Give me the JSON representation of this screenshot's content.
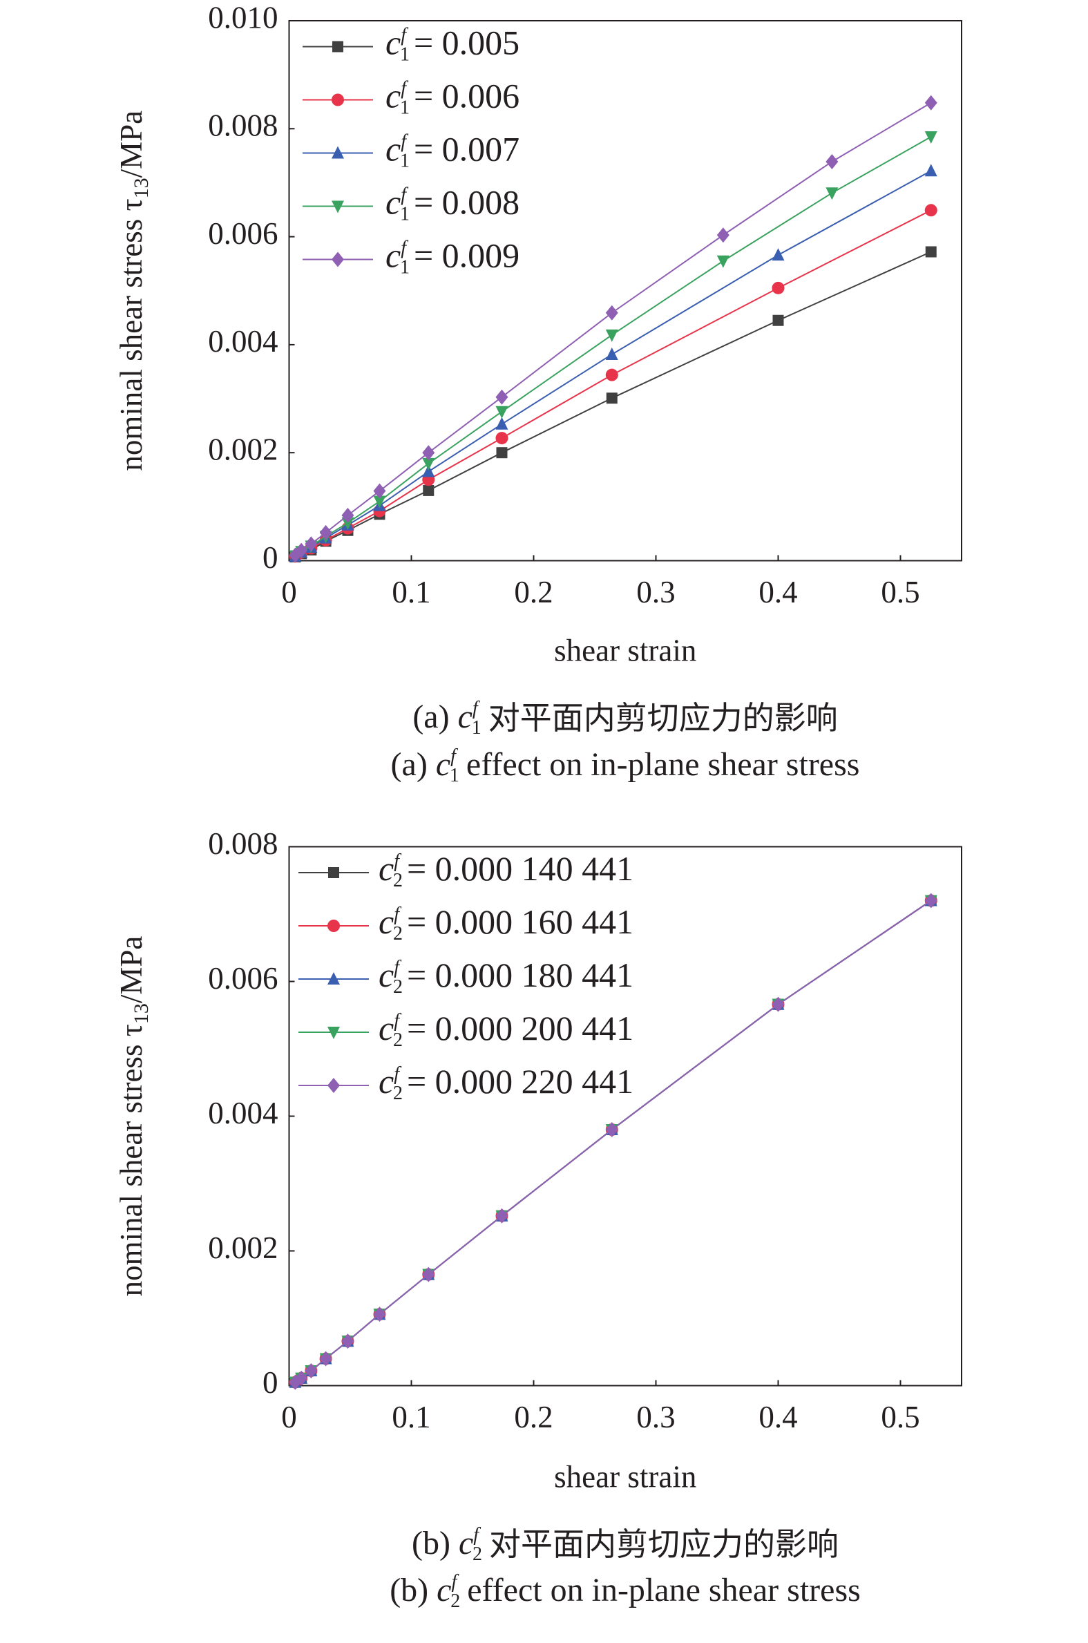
{
  "chart_data": [
    {
      "type": "line",
      "ylabel": [
        "nominal shear stress τ",
        "13",
        "/MPa"
      ],
      "xlabel": "shear strain",
      "legend_symbol": {
        "base": "c",
        "sup": "f",
        "sub": "1"
      },
      "caption_cn": [
        "(a) ",
        "对平面内剪切应力的影响"
      ],
      "caption_en": [
        "(a) ",
        "effect on in-plane shear stress"
      ],
      "xlim": [
        0,
        0.55
      ],
      "xticks": [
        0,
        0.1,
        0.2,
        0.3,
        0.4,
        0.5
      ],
      "ylim": [
        0,
        0.01
      ],
      "yticks": [
        0,
        0.002,
        0.004,
        0.006,
        0.008,
        {
          "value": 0.01,
          "label": "0.010"
        }
      ],
      "legend": "upper-left",
      "series": [
        {
          "name": "= 0.005",
          "color": "#404040",
          "marker": "square",
          "x": [
            0.005,
            0.01,
            0.018,
            0.03,
            0.048,
            0.074,
            0.114,
            0.174,
            0.264,
            0.4,
            0.525
          ],
          "values": [
            7e-05,
            0.00013,
            0.0002,
            0.00036,
            0.00056,
            0.00086,
            0.0013,
            0.002,
            0.00301,
            0.00445,
            0.00572
          ]
        },
        {
          "name": "= 0.006",
          "color": "#e8344a",
          "marker": "circle",
          "x": [
            0.005,
            0.01,
            0.018,
            0.03,
            0.048,
            0.074,
            0.114,
            0.174,
            0.264,
            0.4,
            0.525
          ],
          "values": [
            8e-05,
            0.00015,
            0.00023,
            0.00038,
            0.0006,
            0.00092,
            0.0015,
            0.00227,
            0.00344,
            0.00505,
            0.00649
          ]
        },
        {
          "name": "= 0.007",
          "color": "#3a5eb0",
          "marker": "triangle",
          "x": [
            0.005,
            0.01,
            0.018,
            0.03,
            0.048,
            0.074,
            0.114,
            0.174,
            0.264,
            0.4,
            0.525
          ],
          "values": [
            8e-05,
            0.00016,
            0.00025,
            0.00042,
            0.00066,
            0.00102,
            0.00165,
            0.00253,
            0.00382,
            0.00566,
            0.00722
          ]
        },
        {
          "name": "= 0.008",
          "color": "#3aa25f",
          "marker": "triangle-down",
          "x": [
            0.005,
            0.01,
            0.018,
            0.03,
            0.048,
            0.074,
            0.114,
            0.174,
            0.264,
            0.355,
            0.444,
            0.525
          ],
          "values": [
            9e-05,
            0.00017,
            0.00027,
            0.00045,
            0.0007,
            0.0011,
            0.0018,
            0.00276,
            0.00418,
            0.00555,
            0.00681,
            0.00785
          ]
        },
        {
          "name": "= 0.009",
          "color": "#8e5fb3",
          "marker": "diamond",
          "x": [
            0.005,
            0.01,
            0.018,
            0.03,
            0.048,
            0.074,
            0.114,
            0.174,
            0.264,
            0.355,
            0.444,
            0.525
          ],
          "values": [
            0.0001,
            0.00019,
            0.00031,
            0.00052,
            0.00084,
            0.00129,
            0.002,
            0.00303,
            0.00459,
            0.00603,
            0.00739,
            0.00848
          ]
        }
      ]
    },
    {
      "type": "line",
      "ylabel": [
        "nominal shear stress τ",
        "13",
        "/MPa"
      ],
      "xlabel": "shear strain",
      "legend_symbol": {
        "base": "c",
        "sup": "f",
        "sub": "2"
      },
      "caption_cn": [
        "(b) ",
        "对平面内剪切应力的影响"
      ],
      "caption_en": [
        "(b) ",
        "effect on in-plane shear stress"
      ],
      "xlim": [
        0,
        0.55
      ],
      "xticks": [
        0,
        0.1,
        0.2,
        0.3,
        0.4,
        0.5
      ],
      "ylim": [
        0,
        0.008
      ],
      "yticks": [
        0,
        0.002,
        0.004,
        0.006,
        0.008
      ],
      "legend": "upper-left",
      "series": [
        {
          "name": "= 0.000 140 441",
          "color": "#404040",
          "marker": "square",
          "x": [
            0.005,
            0.01,
            0.018,
            0.03,
            0.048,
            0.074,
            0.114,
            0.174,
            0.264,
            0.4,
            0.525
          ],
          "values": [
            5e-05,
            0.00011,
            0.00022,
            0.0004,
            0.00066,
            0.00106,
            0.00165,
            0.00252,
            0.0038,
            0.00566,
            0.0072
          ]
        },
        {
          "name": "= 0.000 160 441",
          "color": "#e8344a",
          "marker": "circle",
          "x": [
            0.005,
            0.01,
            0.018,
            0.03,
            0.048,
            0.074,
            0.114,
            0.174,
            0.264,
            0.4,
            0.525
          ],
          "values": [
            5e-05,
            0.00011,
            0.00022,
            0.0004,
            0.00066,
            0.00106,
            0.00165,
            0.00252,
            0.0038,
            0.00566,
            0.0072
          ]
        },
        {
          "name": "= 0.000 180 441",
          "color": "#3a5eb0",
          "marker": "triangle",
          "x": [
            0.005,
            0.01,
            0.018,
            0.03,
            0.048,
            0.074,
            0.114,
            0.174,
            0.264,
            0.4,
            0.525
          ],
          "values": [
            5e-05,
            0.00011,
            0.00022,
            0.0004,
            0.00066,
            0.00106,
            0.00165,
            0.00252,
            0.0038,
            0.00566,
            0.0072
          ]
        },
        {
          "name": "= 0.000 200 441",
          "color": "#3aa25f",
          "marker": "triangle-down",
          "x": [
            0.005,
            0.01,
            0.018,
            0.03,
            0.048,
            0.074,
            0.114,
            0.174,
            0.264,
            0.4,
            0.525
          ],
          "values": [
            5e-05,
            0.00011,
            0.00022,
            0.0004,
            0.00066,
            0.00106,
            0.00165,
            0.00252,
            0.0038,
            0.00566,
            0.0072
          ]
        },
        {
          "name": "= 0.000 220 441",
          "color": "#8e5fb3",
          "marker": "diamond",
          "x": [
            0.005,
            0.01,
            0.018,
            0.03,
            0.048,
            0.074,
            0.114,
            0.174,
            0.264,
            0.4,
            0.525
          ],
          "values": [
            5e-05,
            0.00011,
            0.00022,
            0.0004,
            0.00066,
            0.00106,
            0.00165,
            0.00252,
            0.0038,
            0.00566,
            0.0072
          ]
        }
      ]
    }
  ]
}
